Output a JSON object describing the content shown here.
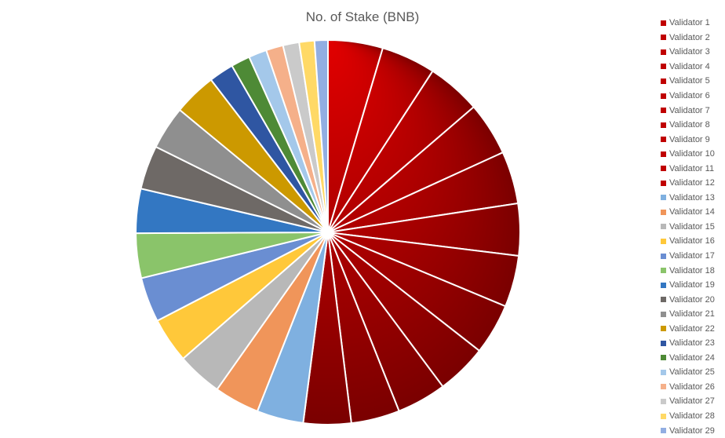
{
  "chart_data": {
    "type": "pie",
    "title": "No. of Stake (BNB)",
    "start_angle_deg": 0,
    "legend": "right",
    "categories": [
      "Validator 1",
      "Validator 2",
      "Validator 3",
      "Validator 4",
      "Validator 5",
      "Validator 6",
      "Validator 7",
      "Validator 8",
      "Validator 9",
      "Validator 10",
      "Validator 11",
      "Validator 12",
      "Validator 13",
      "Validator 14",
      "Validator 15",
      "Validator 16",
      "Validator 17",
      "Validator 18",
      "Validator 19",
      "Validator 20",
      "Validator 21",
      "Validator 22",
      "Validator 23",
      "Validator 24",
      "Validator 25",
      "Validator 26",
      "Validator 27",
      "Validator 28",
      "Validator 29"
    ],
    "values": [
      5.75,
      5.7,
      5.65,
      5.6,
      5.5,
      5.45,
      5.4,
      5.35,
      5.3,
      5.2,
      5.1,
      5.0,
      4.9,
      4.75,
      4.75,
      4.75,
      4.7,
      4.7,
      4.65,
      4.6,
      4.55,
      4.5,
      2.6,
      2.0,
      1.9,
      1.8,
      1.7,
      1.6,
      1.4
    ],
    "colors": [
      "#c00000",
      "#c00000",
      "#c00000",
      "#c00000",
      "#c00000",
      "#c00000",
      "#c00000",
      "#c00000",
      "#c00000",
      "#c00000",
      "#c00000",
      "#c00000",
      "#7fb0e0",
      "#f0955a",
      "#b8b8b8",
      "#ffc83a",
      "#6a8ed2",
      "#8ac46a",
      "#3377c2",
      "#6e6966",
      "#8f8f8f",
      "#cc9900",
      "#2f56a2",
      "#4e8a36",
      "#a4c8ea",
      "#f5b08a",
      "#cacaca",
      "#ffd966",
      "#92aee2"
    ],
    "gradient_dark": "#7a0000",
    "gradient_light": "#e20000"
  }
}
